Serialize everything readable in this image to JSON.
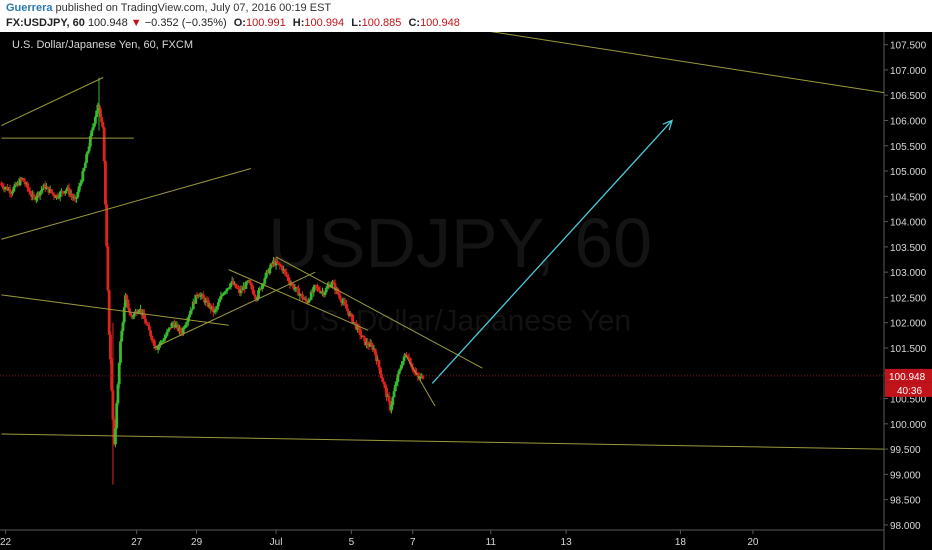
{
  "header": {
    "author": "Guerrera",
    "published": " published on TradingView.com, July 07, 2016 00:19 EST",
    "symbol": "FX:USDJPY, 60",
    "last": "100.948",
    "arrow": "▼",
    "change": "−0.352 (−0.35%)",
    "o_label": "O:",
    "o": "100.991",
    "h_label": "H:",
    "h": "100.994",
    "l_label": "L:",
    "l": "100.885",
    "c_label": "C:",
    "c": "100.948"
  },
  "chart_data": {
    "type": "candlestick",
    "title": "U.S. Dollar/Japanese Yen, 60, FXCM",
    "watermark": "USDJPY, 60",
    "watermark_sub": "U.S. Dollar/Japanese Yen",
    "y_ticks": [
      "107.500",
      "107.000",
      "106.500",
      "106.000",
      "105.500",
      "105.000",
      "104.500",
      "104.000",
      "103.500",
      "103.000",
      "102.500",
      "102.000",
      "101.500",
      "101.000",
      "100.500",
      "100.000",
      "99.500",
      "99.000",
      "98.500",
      "98.000"
    ],
    "y_range": [
      97.9,
      107.75
    ],
    "x_range": [
      0,
      31.7
    ],
    "x_ticks": [
      {
        "label": "22",
        "pos": 0.2
      },
      {
        "label": "27",
        "pos": 4.9
      },
      {
        "label": "29",
        "pos": 7.05
      },
      {
        "label": "Jul",
        "pos": 9.9
      },
      {
        "label": "5",
        "pos": 12.6
      },
      {
        "label": "7",
        "pos": 14.8
      },
      {
        "label": "11",
        "pos": 17.6
      },
      {
        "label": "13",
        "pos": 20.3
      },
      {
        "label": "18",
        "pos": 24.4
      },
      {
        "label": "20",
        "pos": 27.0
      }
    ],
    "price_path": [
      [
        0,
        104.75
      ],
      [
        0.4,
        104.6
      ],
      [
        0.8,
        104.85
      ],
      [
        1.2,
        104.45
      ],
      [
        1.6,
        104.7
      ],
      [
        2.0,
        104.5
      ],
      [
        2.4,
        104.65
      ],
      [
        2.7,
        104.4
      ],
      [
        3.0,
        105.0
      ],
      [
        3.3,
        105.8
      ],
      [
        3.5,
        106.3
      ],
      [
        3.7,
        105.9
      ],
      [
        3.9,
        102.0
      ],
      [
        4.1,
        99.5
      ],
      [
        4.3,
        101.5
      ],
      [
        4.5,
        102.5
      ],
      [
        4.7,
        102.1
      ],
      [
        5.0,
        102.3
      ],
      [
        5.3,
        101.9
      ],
      [
        5.6,
        101.5
      ],
      [
        5.9,
        101.7
      ],
      [
        6.2,
        102.0
      ],
      [
        6.5,
        101.8
      ],
      [
        6.8,
        102.2
      ],
      [
        7.1,
        102.6
      ],
      [
        7.4,
        102.4
      ],
      [
        7.7,
        102.2
      ],
      [
        8.0,
        102.6
      ],
      [
        8.3,
        102.8
      ],
      [
        8.6,
        102.6
      ],
      [
        8.9,
        102.8
      ],
      [
        9.2,
        102.5
      ],
      [
        9.5,
        102.9
      ],
      [
        9.8,
        103.2
      ],
      [
        10.1,
        103.1
      ],
      [
        10.4,
        102.8
      ],
      [
        10.7,
        102.6
      ],
      [
        11.0,
        102.4
      ],
      [
        11.3,
        102.7
      ],
      [
        11.6,
        102.6
      ],
      [
        11.9,
        102.8
      ],
      [
        12.2,
        102.5
      ],
      [
        12.5,
        102.2
      ],
      [
        12.8,
        101.9
      ],
      [
        13.1,
        101.6
      ],
      [
        13.4,
        101.5
      ],
      [
        13.7,
        100.9
      ],
      [
        14.0,
        100.3
      ],
      [
        14.2,
        100.8
      ],
      [
        14.4,
        101.2
      ],
      [
        14.6,
        101.4
      ],
      [
        14.8,
        101.1
      ],
      [
        15.0,
        100.9
      ],
      [
        15.2,
        100.95
      ]
    ],
    "trendlines": [
      [
        0.05,
        105.9,
        3.7,
        106.85
      ],
      [
        0.05,
        105.65,
        4.8,
        105.65
      ],
      [
        0.05,
        103.65,
        9.0,
        105.05
      ],
      [
        0.05,
        102.55,
        8.2,
        101.95
      ],
      [
        5.5,
        101.5,
        11.3,
        103.0
      ],
      [
        8.2,
        103.05,
        13.2,
        101.85
      ],
      [
        9.9,
        103.3,
        17.3,
        101.1
      ],
      [
        14.5,
        101.4,
        15.6,
        100.35
      ],
      [
        15.95,
        107.9,
        31.7,
        106.55
      ],
      [
        0.05,
        99.8,
        31.7,
        99.5
      ]
    ],
    "projection": [
      15.5,
      100.8,
      24.1,
      106.0
    ],
    "price_label": "100.948",
    "price_value": 100.948,
    "countdown_label": "40:36",
    "colors": {
      "bg": "#000000",
      "up": "#37b930",
      "down": "#e0231e",
      "trend": "#9c9a3c",
      "projection": "#4ec7d8",
      "price_tag": "#c0141a",
      "axis_text": "#d8d8d8"
    }
  }
}
